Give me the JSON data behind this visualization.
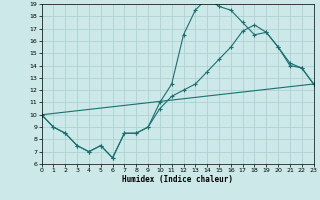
{
  "xlabel": "Humidex (Indice chaleur)",
  "xlim": [
    0,
    23
  ],
  "ylim": [
    6,
    19
  ],
  "yticks": [
    6,
    7,
    8,
    9,
    10,
    11,
    12,
    13,
    14,
    15,
    16,
    17,
    18,
    19
  ],
  "xticks": [
    0,
    1,
    2,
    3,
    4,
    5,
    6,
    7,
    8,
    9,
    10,
    11,
    12,
    13,
    14,
    15,
    16,
    17,
    18,
    19,
    20,
    21,
    22,
    23
  ],
  "bg_color": "#cce8e8",
  "grid_color": "#aacece",
  "line_color": "#1a7070",
  "line1_x": [
    0,
    1,
    2,
    3,
    4,
    5,
    6,
    7,
    8,
    9,
    10,
    11,
    12,
    13,
    14,
    15,
    16,
    17,
    18,
    19,
    20,
    21,
    22,
    23
  ],
  "line1_y": [
    10.0,
    9.0,
    8.5,
    7.5,
    7.0,
    7.5,
    6.5,
    8.5,
    8.5,
    9.0,
    11.0,
    12.5,
    16.5,
    18.5,
    19.5,
    18.8,
    18.5,
    17.5,
    16.5,
    16.7,
    15.5,
    14.0,
    13.8,
    12.5
  ],
  "line2_x": [
    0,
    1,
    2,
    3,
    4,
    5,
    6,
    7,
    8,
    9,
    10,
    11,
    12,
    13,
    14,
    15,
    16,
    17,
    18,
    19,
    20,
    21,
    22,
    23
  ],
  "line2_y": [
    10.0,
    9.0,
    8.5,
    7.5,
    7.0,
    7.5,
    6.5,
    8.5,
    8.5,
    9.0,
    10.5,
    11.5,
    12.0,
    12.5,
    13.5,
    14.5,
    15.5,
    16.8,
    17.3,
    16.7,
    15.5,
    14.2,
    13.8,
    12.5
  ],
  "line3_x": [
    0,
    23
  ],
  "line3_y": [
    10.0,
    12.5
  ]
}
